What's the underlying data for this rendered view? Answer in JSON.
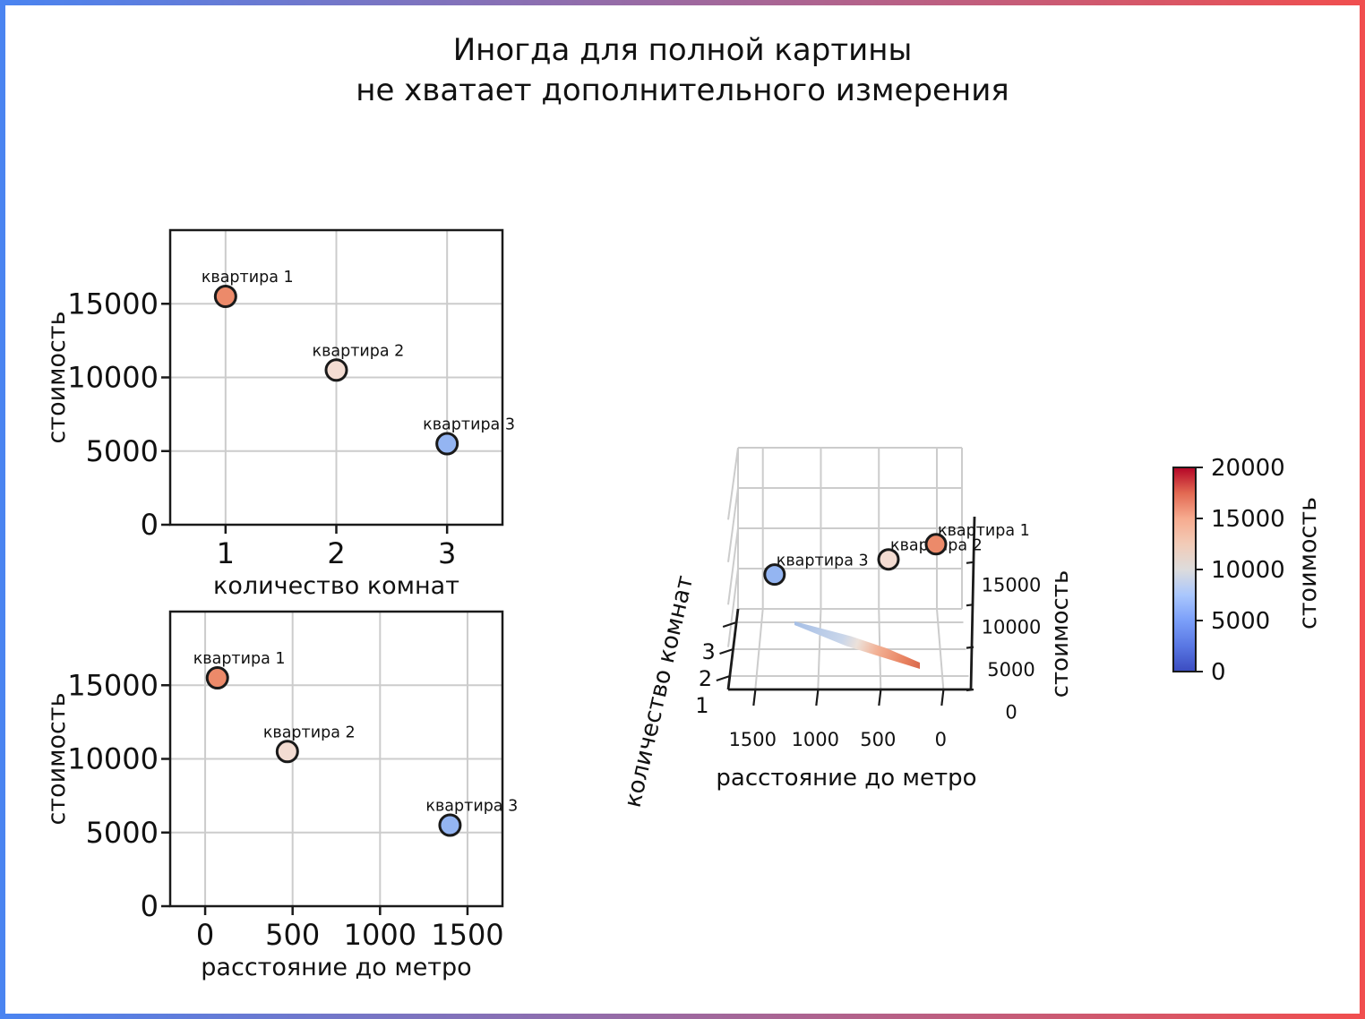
{
  "title": {
    "line1": "Иногда для полной картины",
    "line2": "не хватает дополнительного измерения"
  },
  "style": {
    "border_gradient_left": "#4a84f1",
    "border_gradient_right": "#f14e4e",
    "grid_color": "#cccccc",
    "spine_color": "#1a1a1a",
    "colormap_name": "coolwarm"
  },
  "chart_data": [
    {
      "id": "rooms-vs-cost",
      "type": "scatter",
      "xlabel": "количество комнат",
      "ylabel": "стоимость",
      "points": [
        {
          "label": "квартира 1",
          "x": 1,
          "y": 15500,
          "color": "#ec8a6a"
        },
        {
          "label": "квартира 2",
          "x": 2,
          "y": 10500,
          "color": "#f3dcd2"
        },
        {
          "label": "квартира 3",
          "x": 3,
          "y": 5500,
          "color": "#94b5f2"
        }
      ],
      "xlim": [
        0.5,
        3.5
      ],
      "ylim": [
        0,
        20000
      ],
      "xticks": [
        1,
        2,
        3
      ],
      "yticks": [
        0,
        5000,
        10000,
        15000
      ],
      "grid": true,
      "legend": false
    },
    {
      "id": "metro-vs-cost",
      "type": "scatter",
      "xlabel": "расстояние до метро",
      "ylabel": "стоимость",
      "points": [
        {
          "label": "квартира 1",
          "x": 70,
          "y": 15500,
          "color": "#ec8a6a"
        },
        {
          "label": "квартира 2",
          "x": 470,
          "y": 10500,
          "color": "#f3dcd2"
        },
        {
          "label": "квартира 3",
          "x": 1400,
          "y": 5500,
          "color": "#94b5f2"
        }
      ],
      "xlim": [
        -200,
        1700
      ],
      "ylim": [
        0,
        20000
      ],
      "xticks": [
        0,
        500,
        1000,
        1500
      ],
      "yticks": [
        0,
        5000,
        10000,
        15000
      ],
      "grid": true,
      "legend": false
    },
    {
      "id": "rooms-metro-cost-3d",
      "type": "scatter3d",
      "xlabel": "расстояние до метро",
      "ylabel": "количество комнат",
      "zlabel": "стоимость",
      "points": [
        {
          "label": "квартира 1",
          "metro": 70,
          "rooms": 1,
          "cost": 15500,
          "color": "#ec8a6a"
        },
        {
          "label": "квартира 2",
          "metro": 470,
          "rooms": 2,
          "cost": 10500,
          "color": "#f3dcd2"
        },
        {
          "label": "квартира 3",
          "metro": 1400,
          "rooms": 3,
          "cost": 5500,
          "color": "#94b5f2"
        }
      ],
      "xticks": [
        1500,
        1000,
        500,
        0
      ],
      "yticks": [
        1,
        2,
        3
      ],
      "zticks": [
        0,
        5000,
        10000,
        15000
      ],
      "xlim": [
        -214,
        1714
      ],
      "ylim": [
        0.5,
        3.5
      ],
      "zlim": [
        0,
        20500
      ],
      "surface": {
        "type": "fitted-plane",
        "colormap": "coolwarm"
      },
      "grid": true
    },
    {
      "id": "cost-colorbar",
      "type": "colorbar",
      "label": "стоимость",
      "ticks": [
        0,
        5000,
        10000,
        15000,
        20000
      ],
      "vmin": 0,
      "vmax": 20000,
      "colormap": "coolwarm"
    }
  ]
}
